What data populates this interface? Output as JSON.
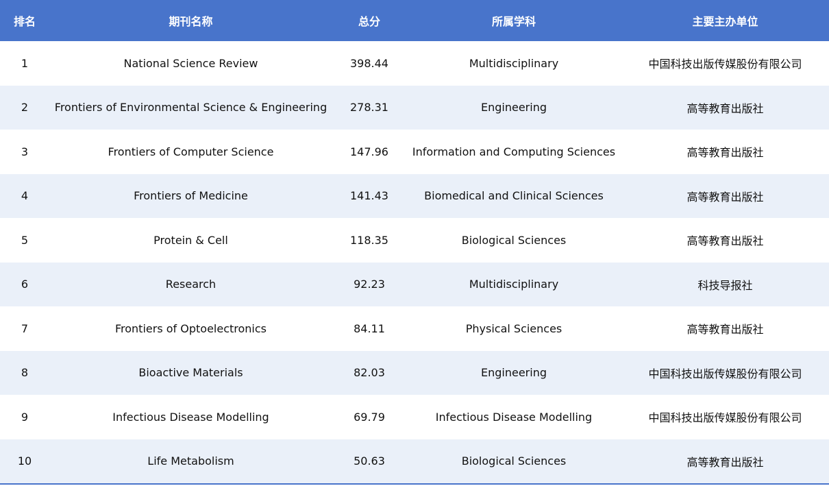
{
  "headers": [
    "排名",
    "期刊名称",
    "总分",
    "所属学科",
    "主要主办单位"
  ],
  "rows": [
    [
      "1",
      "National Science Review",
      "398.44",
      "Multidisciplinary",
      "中国科技出版传媒股份有限公司"
    ],
    [
      "2",
      "Frontiers of Environmental Science & Engineering",
      "278.31",
      "Engineering",
      "高等教育出版社"
    ],
    [
      "3",
      "Frontiers of Computer Science",
      "147.96",
      "Information and Computing Sciences",
      "高等教育出版社"
    ],
    [
      "4",
      "Frontiers of Medicine",
      "141.43",
      "Biomedical and Clinical Sciences",
      "高等教育出版社"
    ],
    [
      "5",
      "Protein & Cell",
      "118.35",
      "Biological Sciences",
      "高等教育出版社"
    ],
    [
      "6",
      "Research",
      "92.23",
      "Multidisciplinary",
      "科技导报社"
    ],
    [
      "7",
      "Frontiers of Optoelectronics",
      "84.11",
      "Physical Sciences",
      "高等教育出版社"
    ],
    [
      "8",
      "Bioactive Materials",
      "82.03",
      "Engineering",
      "中国科技出版传媒股份有限公司"
    ],
    [
      "9",
      "Infectious Disease Modelling",
      "69.79",
      "Infectious Disease Modelling",
      "中国科技出版传媒股份有限公司"
    ],
    [
      "10",
      "Life Metabolism",
      "50.63",
      "Biological Sciences",
      "高等教育出版社"
    ]
  ],
  "colors": {
    "header": "#4874cb",
    "alt_row": "#eaf0f9"
  }
}
